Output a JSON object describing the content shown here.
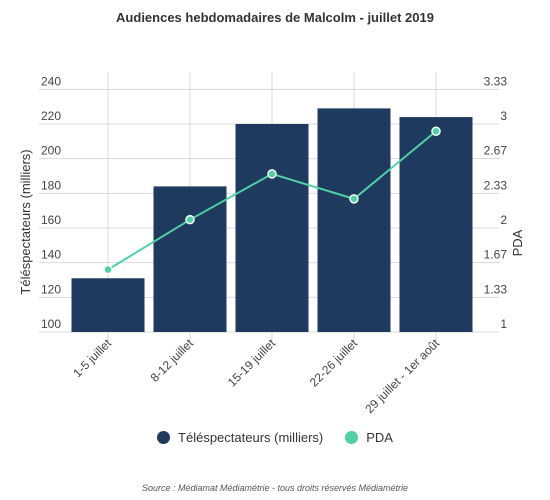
{
  "chart_data": {
    "type": "bar",
    "title": "Audiences hebdomadaires de Malcolm - juillet 2019",
    "categories": [
      "1-5 juillet",
      "8-12 juillet",
      "15-19 juillet",
      "22-26 juillet",
      "29 juillet - 1er août"
    ],
    "series": [
      {
        "name": "Téléspectateurs (milliers)",
        "type": "bar",
        "axis": "left",
        "color": "#1f3a5f",
        "values": [
          131,
          184,
          220,
          229,
          224
        ]
      },
      {
        "name": "PDA",
        "type": "line",
        "axis": "right",
        "color": "#4fd1a5",
        "values": [
          1.6,
          2.08,
          2.52,
          2.28,
          2.93
        ]
      }
    ],
    "ylabel": "Téléspectateurs (milliers)",
    "ylabel_right": "PDA",
    "ylim": [
      100,
      250
    ],
    "yticks": [
      100,
      120,
      140,
      160,
      180,
      200,
      220,
      240
    ],
    "ylim_right": [
      1,
      3.5
    ],
    "yticks_right": [
      "1",
      "1.33",
      "1.67",
      "2",
      "2.33",
      "2.67",
      "3",
      "3.33"
    ],
    "grid": true,
    "legend_position": "bottom",
    "source": "Source : Médiamat Médiamétrie - tous droits réservés Médiamétrie"
  }
}
